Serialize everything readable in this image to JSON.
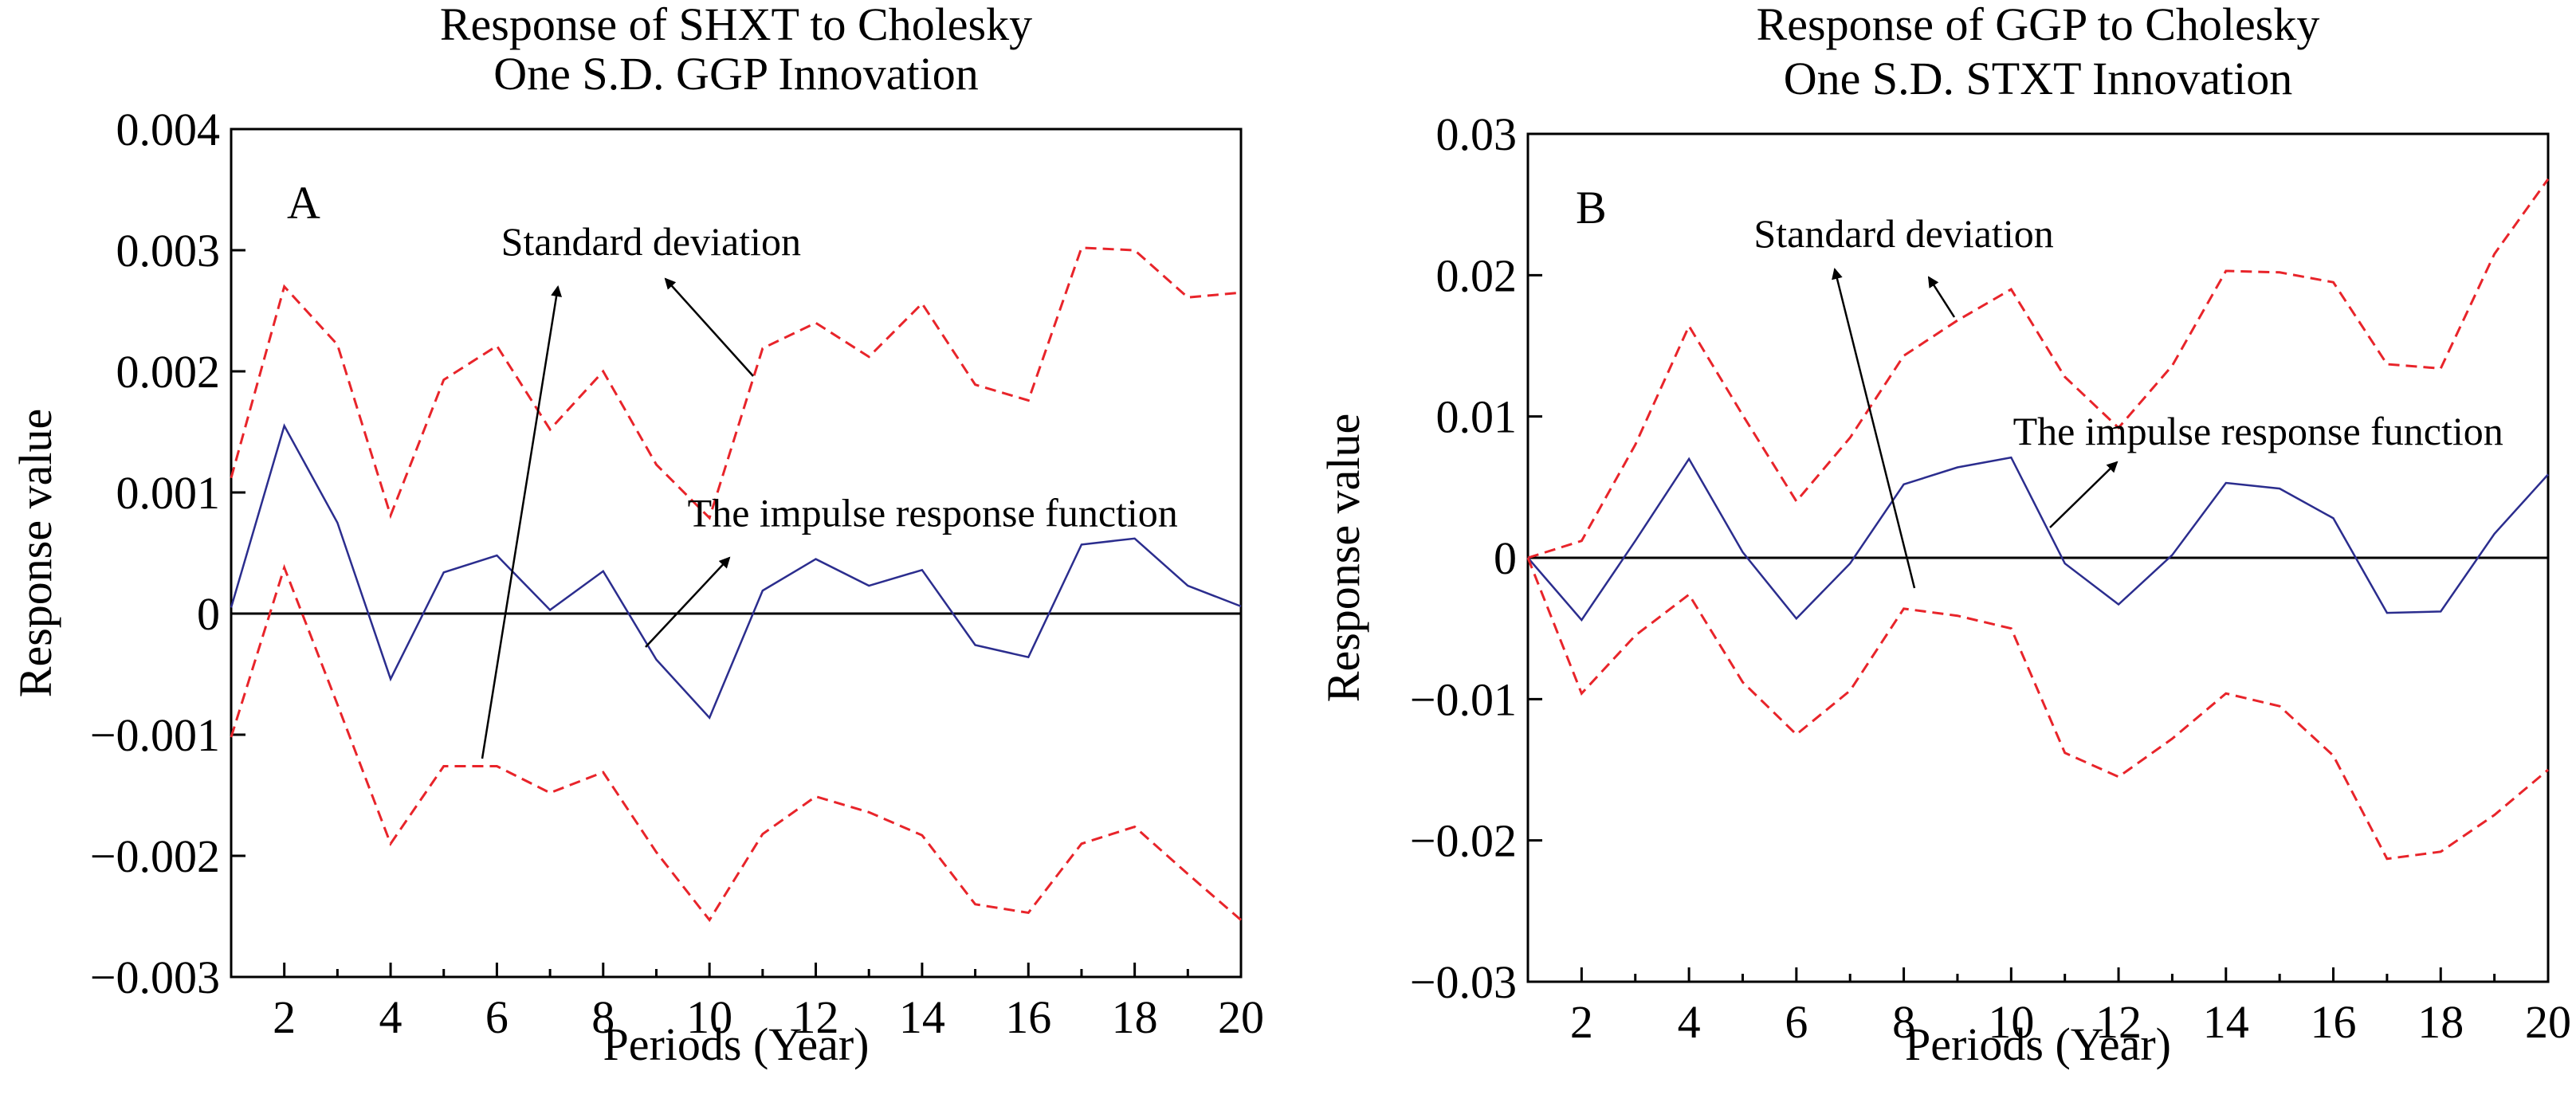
{
  "chart_data": [
    {
      "type": "line",
      "panel_label": "A",
      "title_lines": [
        "Response of SHXT to Cholesky",
        "One S.D. GGP Innovation"
      ],
      "xlabel": "Periods (Year)",
      "ylabel": "Response value",
      "xlim": [
        1,
        20
      ],
      "ylim": [
        -0.003,
        0.004
      ],
      "x_ticks": [
        2,
        4,
        6,
        8,
        10,
        12,
        14,
        16,
        18,
        20
      ],
      "y_ticks": [
        -0.003,
        -0.002,
        -0.001,
        0,
        0.001,
        0.002,
        0.003,
        0.004
      ],
      "y_tick_labels": [
        "−0.003",
        "−0.002",
        "−0.001",
        "0",
        "0.001",
        "0.002",
        "0.003",
        "0.004"
      ],
      "grid": false,
      "zero_line": true,
      "x": [
        1,
        2,
        3,
        4,
        5,
        6,
        7,
        8,
        9,
        10,
        11,
        12,
        13,
        14,
        15,
        16,
        17,
        18,
        19,
        20
      ],
      "series": [
        {
          "role": "upper",
          "color": "#e8242a",
          "dash": true,
          "values": [
            0.00112,
            0.0027,
            0.00222,
            0.00081,
            0.00193,
            0.00221,
            0.00152,
            0.002,
            0.00123,
            0.00079,
            0.00219,
            0.0024,
            0.00212,
            0.00256,
            0.00189,
            0.00176,
            0.00302,
            0.003,
            0.00261,
            0.00265
          ]
        },
        {
          "role": "irf",
          "color": "#2b2d8e",
          "dash": false,
          "values": [
            5e-05,
            0.00155,
            0.00075,
            -0.00054,
            0.00034,
            0.00048,
            3e-05,
            0.00035,
            -0.00038,
            -0.00086,
            0.00019,
            0.00045,
            0.00023,
            0.00036,
            -0.00026,
            -0.00036,
            0.00057,
            0.00062,
            0.00023,
            6e-05
          ]
        },
        {
          "role": "lower",
          "color": "#e8242a",
          "dash": true,
          "values": [
            -0.00102,
            0.00038,
            -0.00075,
            -0.0019,
            -0.00126,
            -0.00126,
            -0.00148,
            -0.00131,
            -0.00197,
            -0.00253,
            -0.00182,
            -0.00151,
            -0.00164,
            -0.00183,
            -0.0024,
            -0.00247,
            -0.0019,
            -0.00176,
            -0.00215,
            -0.00253
          ]
        }
      ],
      "annotations": [
        {
          "text": "Standard deviation",
          "anchor_x": 8.9,
          "anchor_y": 0.00296,
          "align": "middle",
          "arrows": [
            [
              3.6,
              0.004,
              7.0,
              0.0031
            ],
            [
              6.0,
              0.0028,
              11.0,
              0.00218
            ]
          ],
          "arrow_tail_points": [
            [
              6.0,
              -0.00122
            ],
            [
              7.9,
              0.0027
            ]
          ]
        },
        {
          "text": "The impulse response function",
          "anchor_x": 14.2,
          "anchor_y": 0.00072,
          "align": "middle",
          "arrows": [
            [
              7.6,
              -0.00028,
              10.2,
              0.00049
            ]
          ]
        }
      ]
    },
    {
      "type": "line",
      "panel_label": "B",
      "title_lines": [
        "Response of GGP to Cholesky",
        "One S.D. STXT Innovation"
      ],
      "xlabel": "Periods (Year)",
      "ylabel": "Response value",
      "xlim": [
        1,
        20
      ],
      "ylim": [
        -0.03,
        0.03
      ],
      "x_ticks": [
        2,
        4,
        6,
        8,
        10,
        12,
        14,
        16,
        18,
        20
      ],
      "y_ticks": [
        -0.03,
        -0.02,
        -0.01,
        0,
        0.01,
        0.02,
        0.03
      ],
      "y_tick_labels": [
        "−0.03",
        "−0.02",
        "−0.01",
        "0",
        "0.01",
        "0.02",
        "0.03"
      ],
      "grid": false,
      "zero_line": true,
      "x": [
        1,
        2,
        3,
        4,
        5,
        6,
        7,
        8,
        9,
        10,
        11,
        12,
        13,
        14,
        15,
        16,
        17,
        18,
        19,
        20
      ],
      "series": [
        {
          "role": "upper",
          "color": "#e8242a",
          "dash": true,
          "values": [
            0.0,
            0.0012,
            0.008,
            0.0164,
            0.0101,
            0.004,
            0.0085,
            0.0143,
            0.0168,
            0.019,
            0.0128,
            0.0092,
            0.0136,
            0.0203,
            0.0202,
            0.0195,
            0.0137,
            0.0134,
            0.0215,
            0.0268
          ]
        },
        {
          "role": "irf",
          "color": "#2b2d8e",
          "dash": false,
          "values": [
            0.0,
            -0.0044,
            0.0012,
            0.007,
            0.0004,
            -0.0043,
            -0.0004,
            0.0052,
            0.0064,
            0.0071,
            -0.0004,
            -0.0033,
            0.0002,
            0.0053,
            0.0049,
            0.0028,
            -0.0039,
            -0.0038,
            0.0017,
            0.0059
          ]
        },
        {
          "role": "lower",
          "color": "#e8242a",
          "dash": true,
          "values": [
            0.0,
            -0.0096,
            -0.0055,
            -0.0026,
            -0.0088,
            -0.0125,
            -0.0094,
            -0.0036,
            -0.0041,
            -0.005,
            -0.0138,
            -0.0155,
            -0.0128,
            -0.0096,
            -0.0105,
            -0.014,
            -0.0213,
            -0.0208,
            -0.0182,
            -0.015
          ]
        }
      ],
      "annotations": [
        {
          "text": "Standard deviation",
          "anchor_x": 8.0,
          "anchor_y": 0.022,
          "align": "middle",
          "arrows": [
            [
              8.2,
              -0.0028,
              6.6,
              0.02
            ],
            [
              8.8,
              0.017,
              8.2,
              0.02
            ]
          ]
        },
        {
          "text": "The impulse response function",
          "anchor_x": 14.6,
          "anchor_y": 0.008,
          "align": "middle",
          "arrows": [
            [
              11.0,
              0.0012,
              12.2,
              0.0066
            ]
          ]
        }
      ]
    }
  ]
}
